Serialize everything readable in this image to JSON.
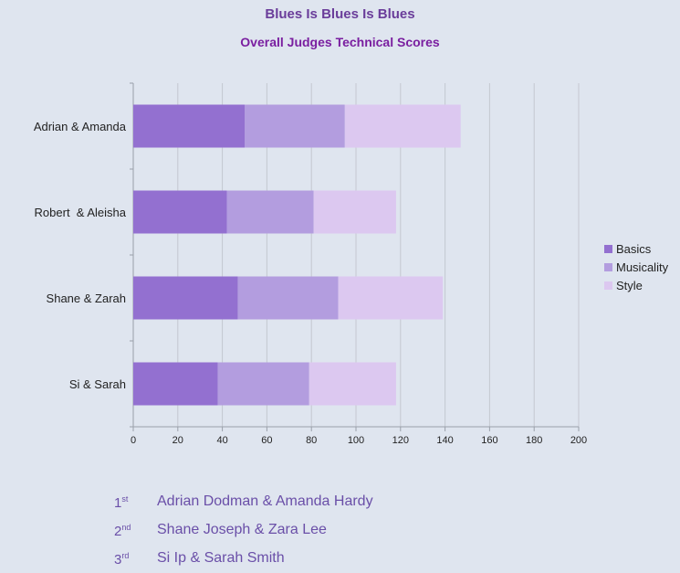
{
  "chart_data": {
    "type": "bar",
    "orientation": "horizontal",
    "stacked": true,
    "title": "Blues Is Blues Is Blues",
    "subtitle": "Overall Judges Technical Scores",
    "categories": [
      "Adrian & Amanda",
      "Robert  & Aleisha",
      "Shane & Zarah",
      "Si & Sarah"
    ],
    "series": [
      {
        "name": "Basics",
        "color": "#9370d0",
        "values": [
          50,
          42,
          47,
          38
        ]
      },
      {
        "name": "Musicality",
        "color": "#b39ddf",
        "values": [
          45,
          39,
          45,
          41
        ]
      },
      {
        "name": "Style",
        "color": "#dcc8f0",
        "values": [
          52,
          37,
          47,
          39
        ]
      }
    ],
    "xlim": [
      0,
      200
    ],
    "xticks": [
      "0",
      "20",
      "40",
      "60",
      "80",
      "100",
      "120",
      "140",
      "160",
      "180",
      "200"
    ],
    "grid": true,
    "legend": "right"
  },
  "results": [
    {
      "place": "1",
      "suffix": "st",
      "names": "Adrian Dodman & Amanda Hardy"
    },
    {
      "place": "2",
      "suffix": "nd",
      "names": "Shane Joseph & Zara Lee"
    },
    {
      "place": "3",
      "suffix": "rd",
      "names": "Si Ip & Sarah Smith"
    }
  ]
}
